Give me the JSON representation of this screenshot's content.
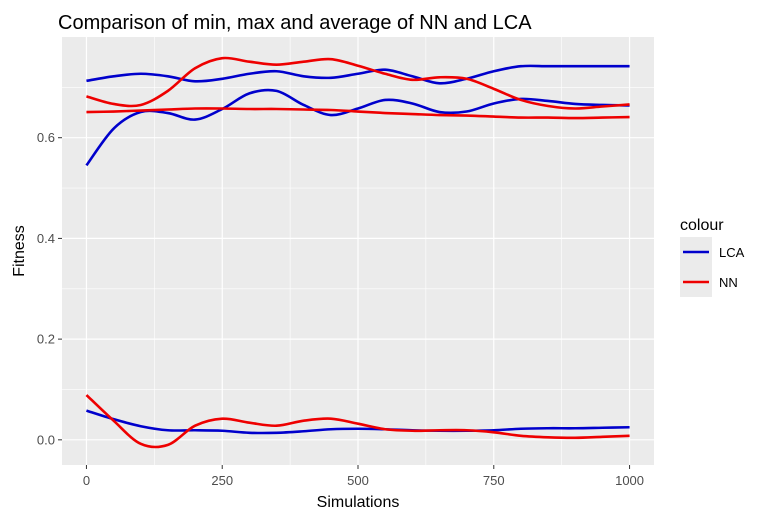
{
  "chart_data": {
    "type": "line",
    "title": "Comparison of min, max and average of NN and LCA",
    "xlabel": "Simulations",
    "ylabel": "Fitness",
    "xlim": [
      -45,
      1045
    ],
    "ylim": [
      -0.05,
      0.8
    ],
    "x_ticks": [
      0,
      250,
      500,
      750,
      1000
    ],
    "x_tick_labels": [
      "0",
      "250",
      "500",
      "750",
      "1000"
    ],
    "y_ticks": [
      0.0,
      0.2,
      0.4,
      0.6
    ],
    "y_tick_labels": [
      "0.0",
      "0.2",
      "0.4",
      "0.6"
    ],
    "grid": true,
    "legend": {
      "title": "colour",
      "position": "right",
      "entries": [
        {
          "label": "LCA",
          "color": "#0000cc"
        },
        {
          "label": "NN",
          "color": "#ee0000"
        }
      ]
    },
    "colors": {
      "panel_background": "#ebebeb",
      "grid_major": "#ffffff",
      "LCA": "#0000cc",
      "NN": "#ee0000"
    },
    "series": [
      {
        "group": "LCA",
        "color": "#0000cc",
        "line": "max",
        "x": [
          0,
          50,
          100,
          150,
          200,
          250,
          300,
          350,
          400,
          450,
          500,
          550,
          600,
          650,
          700,
          750,
          800,
          850,
          900,
          950,
          1000
        ],
        "y": [
          0.713,
          0.722,
          0.727,
          0.722,
          0.712,
          0.717,
          0.727,
          0.732,
          0.722,
          0.719,
          0.727,
          0.735,
          0.722,
          0.708,
          0.717,
          0.732,
          0.742,
          0.742,
          0.742,
          0.742,
          0.742
        ]
      },
      {
        "group": "LCA",
        "color": "#0000cc",
        "line": "avg",
        "x": [
          0,
          50,
          100,
          150,
          200,
          250,
          300,
          350,
          400,
          450,
          500,
          550,
          600,
          650,
          700,
          750,
          800,
          850,
          900,
          950,
          1000
        ],
        "y": [
          0.545,
          0.618,
          0.651,
          0.649,
          0.636,
          0.657,
          0.688,
          0.693,
          0.665,
          0.645,
          0.658,
          0.675,
          0.668,
          0.651,
          0.652,
          0.668,
          0.677,
          0.673,
          0.667,
          0.665,
          0.664
        ]
      },
      {
        "group": "LCA",
        "color": "#0000cc",
        "line": "min",
        "x": [
          0,
          50,
          100,
          150,
          200,
          250,
          300,
          350,
          400,
          450,
          500,
          550,
          600,
          650,
          700,
          750,
          800,
          850,
          900,
          950,
          1000
        ],
        "y": [
          0.058,
          0.041,
          0.027,
          0.019,
          0.019,
          0.018,
          0.014,
          0.014,
          0.017,
          0.021,
          0.022,
          0.021,
          0.019,
          0.018,
          0.018,
          0.019,
          0.022,
          0.023,
          0.023,
          0.024,
          0.025
        ]
      },
      {
        "group": "NN",
        "color": "#ee0000",
        "line": "max",
        "x": [
          0,
          50,
          100,
          150,
          200,
          250,
          300,
          350,
          400,
          450,
          500,
          550,
          600,
          650,
          700,
          750,
          800,
          850,
          900,
          950,
          1000
        ],
        "y": [
          0.682,
          0.667,
          0.665,
          0.693,
          0.738,
          0.758,
          0.751,
          0.745,
          0.751,
          0.756,
          0.743,
          0.727,
          0.715,
          0.72,
          0.717,
          0.697,
          0.675,
          0.663,
          0.658,
          0.662,
          0.666
        ]
      },
      {
        "group": "NN",
        "color": "#ee0000",
        "line": "avg",
        "x": [
          0,
          50,
          100,
          150,
          200,
          250,
          300,
          350,
          400,
          450,
          500,
          550,
          600,
          650,
          700,
          750,
          800,
          850,
          900,
          950,
          1000
        ],
        "y": [
          0.651,
          0.652,
          0.654,
          0.656,
          0.658,
          0.658,
          0.657,
          0.657,
          0.656,
          0.655,
          0.652,
          0.649,
          0.647,
          0.645,
          0.644,
          0.642,
          0.64,
          0.64,
          0.639,
          0.64,
          0.641
        ]
      },
      {
        "group": "NN",
        "color": "#ee0000",
        "line": "min",
        "x": [
          0,
          50,
          100,
          150,
          200,
          250,
          300,
          350,
          400,
          450,
          500,
          550,
          600,
          650,
          700,
          750,
          800,
          850,
          900,
          950,
          1000
        ],
        "y": [
          0.089,
          0.038,
          -0.008,
          -0.01,
          0.028,
          0.042,
          0.034,
          0.028,
          0.038,
          0.042,
          0.032,
          0.021,
          0.018,
          0.019,
          0.019,
          0.015,
          0.008,
          0.005,
          0.004,
          0.006,
          0.008
        ]
      }
    ]
  }
}
